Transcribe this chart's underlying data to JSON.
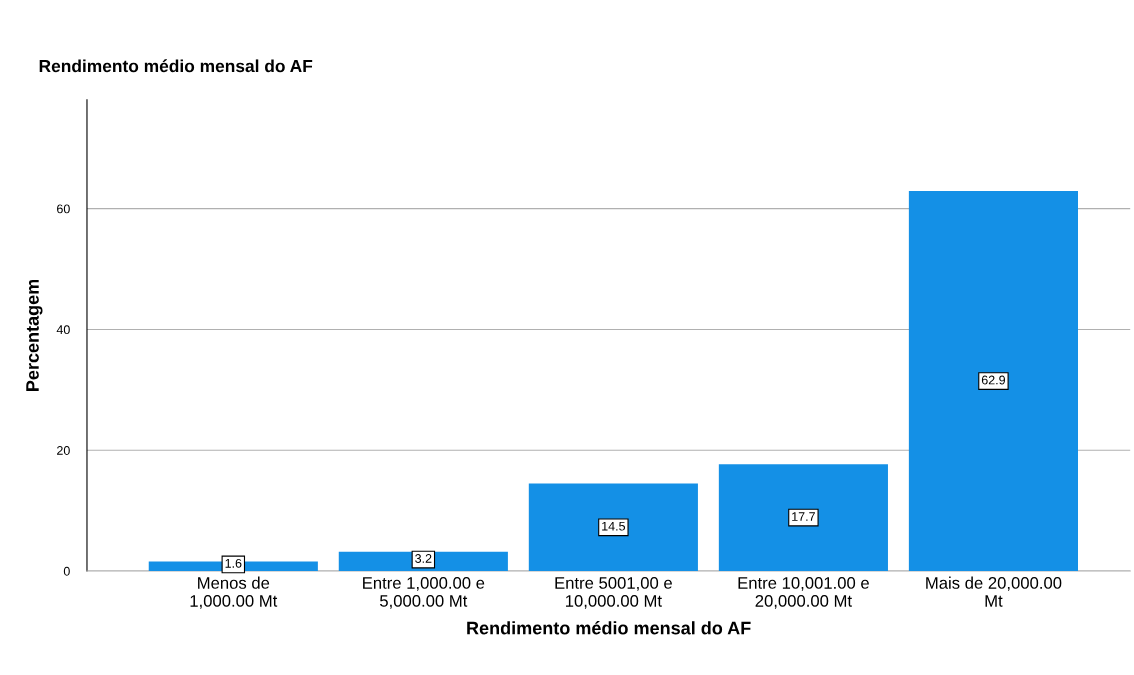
{
  "chart_data": {
    "type": "bar",
    "title": "Rendimento médio mensal do AF",
    "xlabel": "Rendimento médio mensal do AF",
    "ylabel": "Percentagem",
    "categories": [
      "Menos de\n1,000.00 Mt",
      "Entre 1,000.00 e\n5,000.00 Mt",
      "Entre 5001,00 e\n10,000.00 Mt",
      "Entre 10,001.00 e\n20,000.00 Mt",
      "Mais de 20,000.00\nMt"
    ],
    "values": [
      1.6,
      3.2,
      14.5,
      17.7,
      62.9
    ],
    "color": "#1490e6",
    "ylim": [
      0,
      78
    ],
    "yticks": [
      0,
      20,
      40,
      60
    ],
    "grid": "y",
    "data_labels": true
  }
}
